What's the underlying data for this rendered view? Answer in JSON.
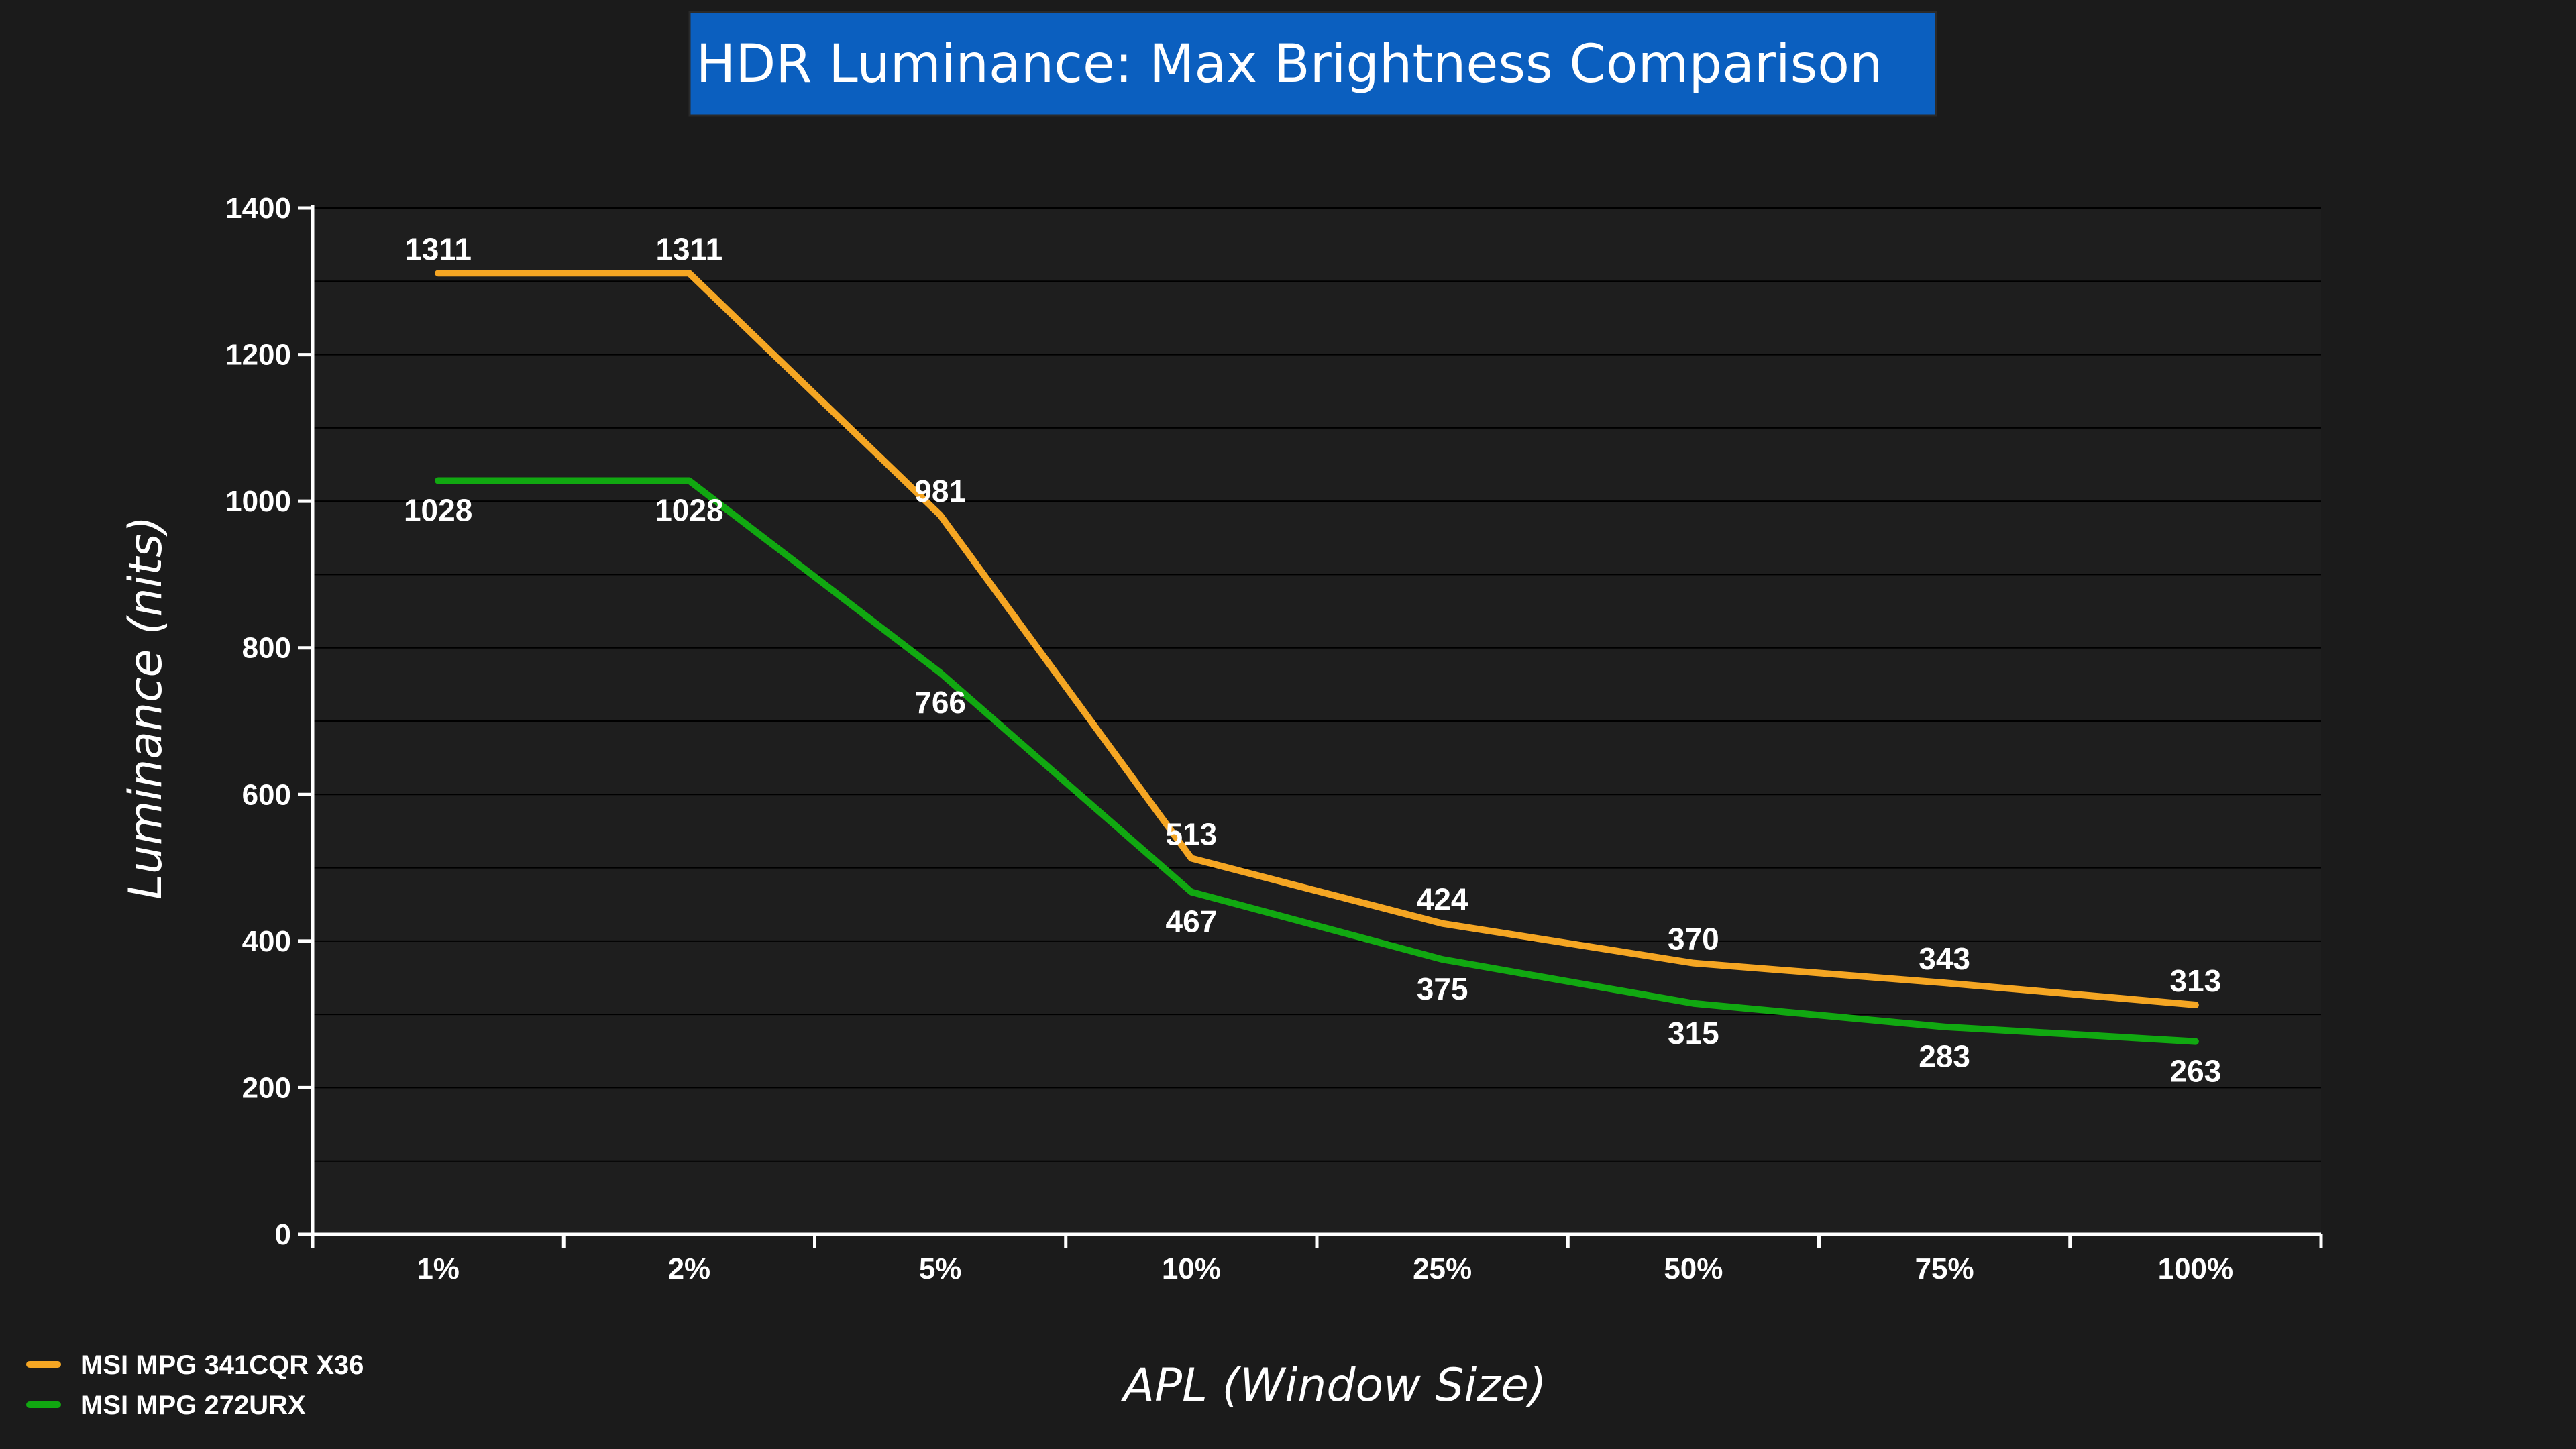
{
  "chart_data": {
    "type": "line",
    "title": "HDR Luminance: Max Brightness Comparison",
    "xlabel": "APL (Window Size)",
    "ylabel": "Luminance (nits)",
    "categories": [
      "1%",
      "2%",
      "5%",
      "10%",
      "25%",
      "50%",
      "75%",
      "100%"
    ],
    "ylim": [
      0,
      1400
    ],
    "yticks": [
      0,
      200,
      400,
      600,
      800,
      1000,
      1200,
      1400
    ],
    "grid": true,
    "legend_position": "bottom-left",
    "series": [
      {
        "name": "MSI MPG 341CQR X36",
        "color": "#f5a623",
        "values": [
          1311,
          1311,
          981,
          513,
          424,
          370,
          343,
          313
        ],
        "label_position": [
          "above",
          "above",
          "above",
          "above",
          "above",
          "above",
          "above",
          "above"
        ]
      },
      {
        "name": "MSI MPG 272URX",
        "color": "#11a811",
        "values": [
          1028,
          1028,
          766,
          467,
          375,
          315,
          283,
          263
        ],
        "label_position": [
          "below",
          "below",
          "below",
          "below",
          "below",
          "below",
          "below",
          "below"
        ]
      }
    ]
  },
  "colors": {
    "background": "#1b1b1b",
    "plot_background": "#1e1e1e",
    "title_box": "#0b5fbf",
    "text": "#ffffff"
  }
}
